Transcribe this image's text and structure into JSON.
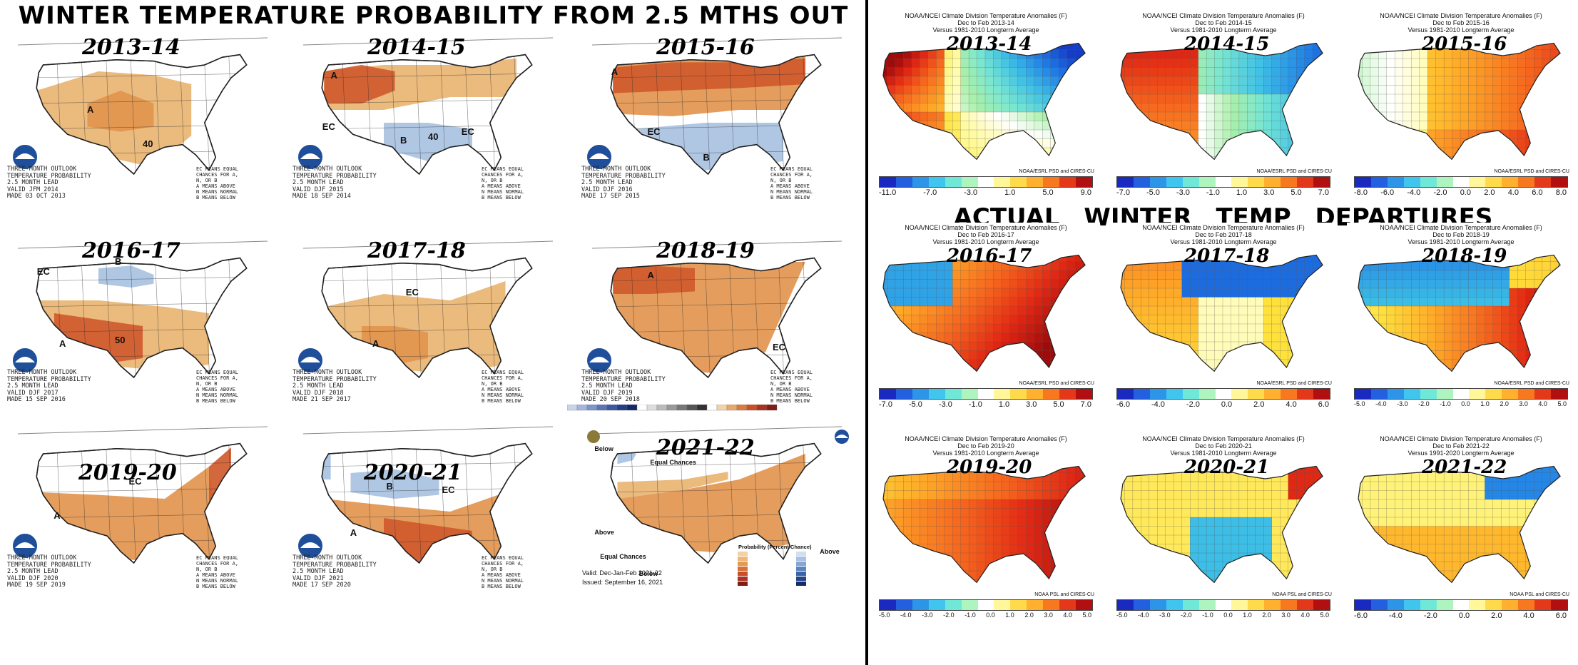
{
  "main_title": "WINTER TEMPERATURE PROBABILITY FROM 2.5 MTHS OUT",
  "right_title": "ACTUAL WINTER TEMP DEPARTURES",
  "colors": {
    "above_light": "#e9b472",
    "above_mid": "#e2954e",
    "above_dark": "#cf5a2c",
    "below_light": "#a9c2e2",
    "noaa_blue": "#1f4e9b"
  },
  "outlook_panels": [
    {
      "year": "2013-14",
      "footer": "THREE-MONTH OUTLOOK\nTEMPERATURE PROBABILITY\n2.5 MONTH LEAD\nVALID JFM 2014\nMADE 03 OCT 2013",
      "labels": [
        "A",
        "40"
      ]
    },
    {
      "year": "2014-15",
      "footer": "THREE-MONTH OUTLOOK\nTEMPERATURE PROBABILITY\n2.5 MONTH LEAD\nVALID DJF 2015\nMADE 18 SEP 2014",
      "labels": [
        "A",
        "EC",
        "B",
        "EC",
        "40"
      ]
    },
    {
      "year": "2015-16",
      "footer": "THREE-MONTH OUTLOOK\nTEMPERATURE PROBABILITY\n2.5 MONTH LEAD\nVALID DJF 2016\nMADE 17 SEP 2015",
      "labels": [
        "A",
        "EC",
        "B"
      ]
    },
    {
      "year": "2016-17",
      "footer": "THREE-MONTH OUTLOOK\nTEMPERATURE PROBABILITY\n2.5 MONTH LEAD\nVALID DJF 2017\nMADE 15 SEP 2016",
      "labels": [
        "EC",
        "B",
        "A",
        "50"
      ]
    },
    {
      "year": "2017-18",
      "footer": "THREE-MONTH OUTLOOK\nTEMPERATURE PROBABILITY\n2.5 MONTH LEAD\nVALID DJF 2018\nMADE 21 SEP 2017",
      "labels": [
        "EC",
        "A"
      ]
    },
    {
      "year": "2018-19",
      "footer": "THREE-MONTH OUTLOOK\nTEMPERATURE PROBABILITY\n2.5 MONTH LEAD\nVALID DJF 2019\nMADE 20 SEP 2018",
      "labels": [
        "A",
        "EC"
      ]
    },
    {
      "year": "2019-20",
      "footer": "THREE-MONTH OUTLOOK\nTEMPERATURE PROBABILITY\n2.5 MONTH LEAD\nVALID DJF 2020\nMADE 19 SEP 2019",
      "labels": [
        "A",
        "EC"
      ]
    },
    {
      "year": "2020-21",
      "footer": "THREE-MONTH OUTLOOK\nTEMPERATURE PROBABILITY\n2.5 MONTH LEAD\nVALID DJF 2021\nMADE 17 SEP 2020",
      "labels": [
        "B",
        "EC",
        "A"
      ]
    },
    {
      "year": "2021-22",
      "labels": [
        "Below",
        "Equal Chances",
        "Above",
        "Equal Chances",
        "Below",
        "Above"
      ],
      "valid": "Valid:  Dec-Jan-Feb 2021-22",
      "issued": "Issued:  September 16, 2021",
      "legend_title": "Probability (Percent Chance)"
    }
  ],
  "ec_legend": "EC MEANS EQUAL\nCHANCES FOR A,\nN, OR B\nA MEANS ABOVE\nN MEANS NORMAL\nB MEANS BELOW",
  "anomaly_panels": [
    {
      "year": "2013-14",
      "hdr1": "NOAA/NCEI Climate Division Temperature Anomalies (F)",
      "hdr2": "Dec to Feb 2013-14",
      "hdr3": "Versus 1981-2010 Longterm Average",
      "credit": "NOAA/ESRL PSD and CIRES-CU",
      "ticks": [
        "-11.0",
        "-7.0",
        "-3.0",
        "1.0",
        "5.0",
        "9.0"
      ]
    },
    {
      "year": "2014-15",
      "hdr1": "NOAA/NCEI Climate Division Temperature Anomalies (F)",
      "hdr2": "Dec to Feb 2014-15",
      "hdr3": "Versus 1981-2010 Longterm Average",
      "credit": "NOAA/ESRL PSD and CIRES-CU",
      "ticks": [
        "-7.0",
        "-5.0",
        "-3.0",
        "-1.0",
        "1.0",
        "3.0",
        "5.0",
        "7.0"
      ]
    },
    {
      "year": "2015-16",
      "hdr1": "NOAA/NCEI Climate Division Temperature Anomalies (F)",
      "hdr2": "Dec to Feb 2015-16",
      "hdr3": "Versus 1981-2010 Longterm Average",
      "credit": "NOAA/ESRL PSD and CIRES-CU",
      "ticks": [
        "-8.0",
        "-6.0",
        "-4.0",
        "-2.0",
        "0.0",
        "2.0",
        "4.0",
        "6.0",
        "8.0"
      ]
    },
    {
      "year": "2016-17",
      "hdr1": "NOAA/NCEI Climate Division Temperature Anomalies (F)",
      "hdr2": "Dec to Feb 2016-17",
      "hdr3": "Versus 1981-2010 Longterm Average",
      "credit": "NOAA/ESRL PSD and CIRES-CU",
      "ticks": [
        "-7.0",
        "-5.0",
        "-3.0",
        "-1.0",
        "1.0",
        "3.0",
        "5.0",
        "7.0"
      ]
    },
    {
      "year": "2017-18",
      "hdr1": "NOAA/NCEI Climate Division Temperature Anomalies (F)",
      "hdr2": "Dec to Feb 2017-18",
      "hdr3": "Versus 1981-2010 Longterm Average",
      "credit": "NOAA/ESRL PSD and CIRES-CU",
      "ticks": [
        "-6.0",
        "-4.0",
        "-2.0",
        "0.0",
        "2.0",
        "4.0",
        "6.0"
      ]
    },
    {
      "year": "2018-19",
      "hdr1": "NOAA/NCEI Climate Division Temperature Anomalies (F)",
      "hdr2": "Dec to Feb 2018-19",
      "hdr3": "Versus 1981-2010 Longterm Average",
      "credit": "NOAA/ESRL PSD and CIRES-CU",
      "ticks": [
        "-5.0",
        "-4.0",
        "-3.0",
        "-2.0",
        "-1.0",
        "0.0",
        "1.0",
        "2.0",
        "3.0",
        "4.0",
        "5.0"
      ]
    },
    {
      "year": "2019-20",
      "hdr1": "NOAA/NCEI Climate Division Temperature Anomalies (F)",
      "hdr2": "Dec to Feb 2019-20",
      "hdr3": "Versus 1981-2010 Longterm Average",
      "credit": "NOAA PSL and CIRES-CU",
      "ticks": [
        "-5.0",
        "-4.0",
        "-3.0",
        "-2.0",
        "-1.0",
        "0.0",
        "1.0",
        "2.0",
        "3.0",
        "4.0",
        "5.0"
      ]
    },
    {
      "year": "2020-21",
      "hdr1": "NOAA/NCEI Climate Division Temperature Anomalies (F)",
      "hdr2": "Dec to Feb 2020-21",
      "hdr3": "Versus 1981-2010 Longterm Average",
      "credit": "NOAA PSL and CIRES-CU",
      "ticks": [
        "-5.0",
        "-4.0",
        "-3.0",
        "-2.0",
        "-1.0",
        "0.0",
        "1.0",
        "2.0",
        "3.0",
        "4.0",
        "5.0"
      ]
    },
    {
      "year": "2021-22",
      "hdr1": "NOAA/NCEI Climate Division Temperature Anomalies (F)",
      "hdr2": "Dec to Feb 2021-22",
      "hdr3": "Versus 1991-2020 Longterm Average",
      "credit": "NOAA PSL and CIRES-CU",
      "ticks": [
        "-6.0",
        "-4.0",
        "-2.0",
        "0.0",
        "2.0",
        "4.0",
        "6.0"
      ]
    }
  ]
}
